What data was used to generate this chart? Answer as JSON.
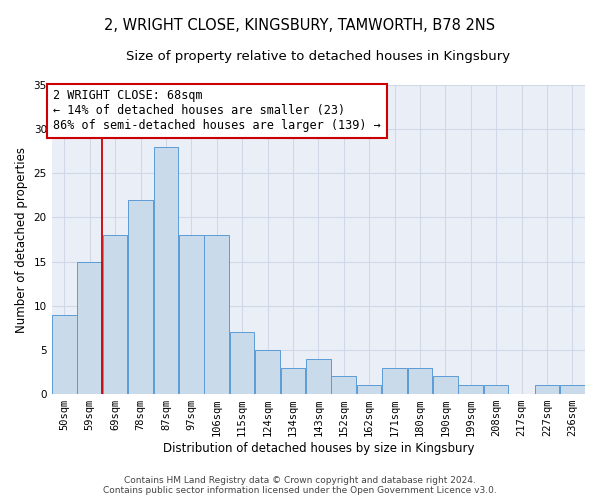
{
  "title": "2, WRIGHT CLOSE, KINGSBURY, TAMWORTH, B78 2NS",
  "subtitle": "Size of property relative to detached houses in Kingsbury",
  "xlabel": "Distribution of detached houses by size in Kingsbury",
  "ylabel": "Number of detached properties",
  "categories": [
    "50sqm",
    "59sqm",
    "69sqm",
    "78sqm",
    "87sqm",
    "97sqm",
    "106sqm",
    "115sqm",
    "124sqm",
    "134sqm",
    "143sqm",
    "152sqm",
    "162sqm",
    "171sqm",
    "180sqm",
    "190sqm",
    "199sqm",
    "208sqm",
    "217sqm",
    "227sqm",
    "236sqm"
  ],
  "values": [
    9,
    15,
    18,
    22,
    28,
    18,
    18,
    7,
    5,
    3,
    4,
    2,
    1,
    3,
    3,
    2,
    1,
    1,
    0,
    1,
    1
  ],
  "bar_color": "#c9daea",
  "bar_edge_color": "#5b9bd5",
  "bar_edge_width": 0.7,
  "vline_x": 1.5,
  "vline_color": "#cc0000",
  "annotation_line1": "2 WRIGHT CLOSE: 68sqm",
  "annotation_line2": "← 14% of detached houses are smaller (23)",
  "annotation_line3": "86% of semi-detached houses are larger (139) →",
  "annotation_box_color": "#ffffff",
  "annotation_box_edge": "#cc0000",
  "ylim": [
    0,
    35
  ],
  "yticks": [
    0,
    5,
    10,
    15,
    20,
    25,
    30,
    35
  ],
  "grid_color": "#d0d8e8",
  "background_color": "#eaeff7",
  "footer_text": "Contains HM Land Registry data © Crown copyright and database right 2024.\nContains public sector information licensed under the Open Government Licence v3.0.",
  "title_fontsize": 10.5,
  "subtitle_fontsize": 9.5,
  "axis_label_fontsize": 8.5,
  "tick_fontsize": 7.5,
  "annotation_fontsize": 8.5,
  "footer_fontsize": 6.5
}
